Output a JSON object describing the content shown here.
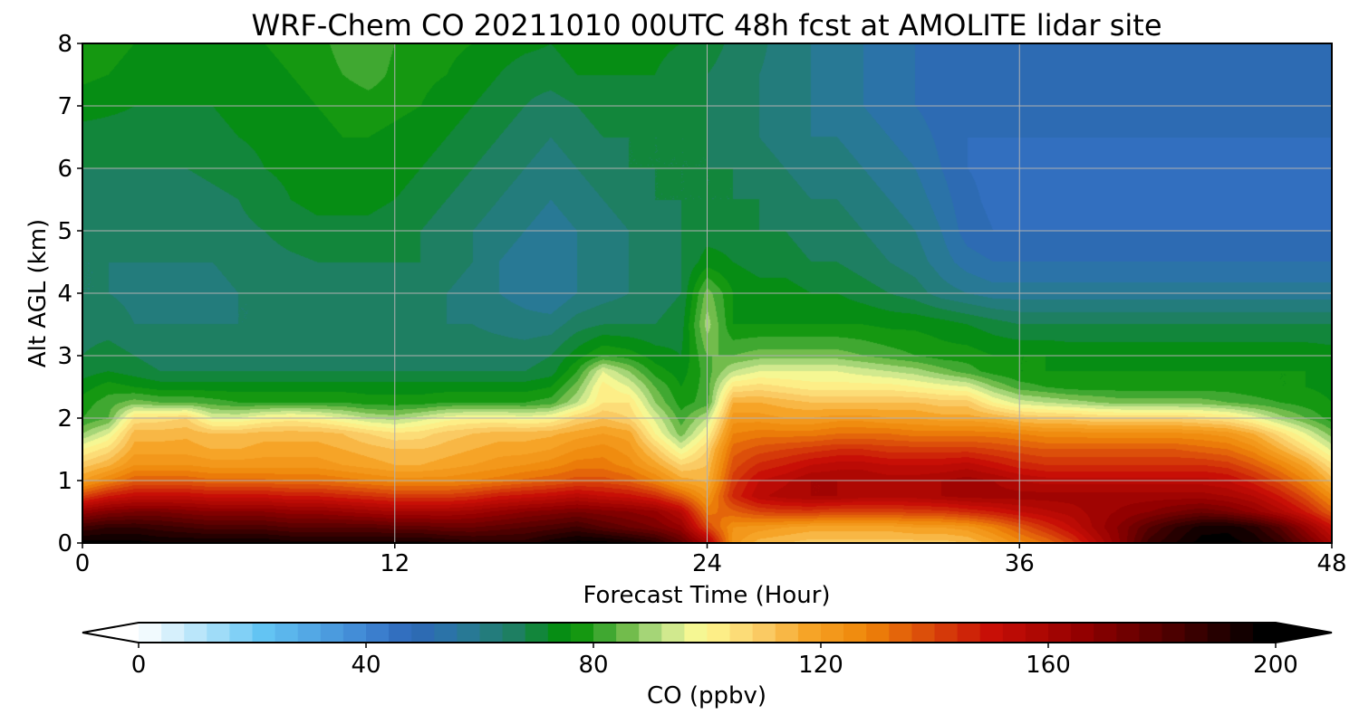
{
  "chart_data": {
    "type": "heatmap",
    "title": "WRF-Chem CO  20211010 00UTC 48h fcst at AMOLITE lidar site",
    "xlabel": "Forecast Time (Hour)",
    "ylabel": "Alt AGL (km)",
    "xlim": [
      0,
      48
    ],
    "ylim": [
      0,
      8
    ],
    "xticks": [
      0,
      12,
      24,
      36,
      48
    ],
    "yticks": [
      0,
      1,
      2,
      3,
      4,
      5,
      6,
      7,
      8
    ],
    "grid": true,
    "colorbar": {
      "label": "CO  (ppbv)",
      "range": [
        0,
        200
      ],
      "ticks": [
        0,
        40,
        80,
        120,
        160,
        200
      ],
      "extend": "both",
      "colors": [
        {
          "v": 0,
          "c": "#ffffff"
        },
        {
          "v": 14,
          "c": "#9fdcf8"
        },
        {
          "v": 22,
          "c": "#63c4f3"
        },
        {
          "v": 40,
          "c": "#3f86d4"
        },
        {
          "v": 48,
          "c": "#2e67b8"
        },
        {
          "v": 56,
          "c": "#2a77a2"
        },
        {
          "v": 66,
          "c": "#1e7f62"
        },
        {
          "v": 76,
          "c": "#009000"
        },
        {
          "v": 81,
          "c": "#34a32a"
        },
        {
          "v": 86,
          "c": "#72bc4c"
        },
        {
          "v": 92,
          "c": "#bfe28c"
        },
        {
          "v": 99,
          "c": "#fefb94"
        },
        {
          "v": 109,
          "c": "#fbcf6a"
        },
        {
          "v": 118,
          "c": "#f6a427"
        },
        {
          "v": 128,
          "c": "#ef8609"
        },
        {
          "v": 140,
          "c": "#d8440a"
        },
        {
          "v": 150,
          "c": "#c80f06"
        },
        {
          "v": 166,
          "c": "#930000"
        },
        {
          "v": 182,
          "c": "#4c0000"
        },
        {
          "v": 198,
          "c": "#000000"
        }
      ]
    },
    "x": [
      0,
      1,
      2,
      3,
      4,
      5,
      6,
      7,
      8,
      9,
      10,
      11,
      12,
      13,
      14,
      15,
      16,
      17,
      18,
      19,
      20,
      21,
      22,
      23,
      24,
      25,
      26,
      27,
      28,
      29,
      30,
      31,
      32,
      33,
      34,
      35,
      36,
      37,
      38,
      39,
      40,
      41,
      42,
      43,
      44,
      45,
      46,
      47,
      48
    ],
    "y": [
      0,
      0.25,
      0.5,
      0.75,
      1,
      1.25,
      1.5,
      1.75,
      2,
      2.25,
      2.5,
      2.75,
      3,
      3.5,
      4,
      4.5,
      5,
      5.5,
      6,
      6.5,
      7,
      7.5,
      8
    ],
    "z": [
      [
        198,
        198,
        198,
        196,
        196,
        196,
        196,
        196,
        194,
        194,
        194,
        194,
        194,
        194,
        192,
        190,
        190,
        190,
        195,
        198,
        198,
        195,
        190,
        178,
        160,
        122,
        114,
        112,
        110,
        110,
        110,
        110,
        110,
        110,
        112,
        118,
        126,
        132,
        142,
        156,
        170,
        186,
        192,
        198,
        198,
        195,
        188,
        175,
        160
      ],
      [
        185,
        188,
        188,
        186,
        184,
        182,
        182,
        182,
        180,
        180,
        180,
        180,
        178,
        178,
        176,
        176,
        178,
        180,
        182,
        185,
        180,
        176,
        172,
        165,
        140,
        124,
        122,
        120,
        118,
        118,
        118,
        118,
        120,
        120,
        122,
        128,
        136,
        144,
        152,
        162,
        170,
        180,
        188,
        194,
        195,
        190,
        180,
        165,
        150
      ],
      [
        165,
        170,
        172,
        172,
        170,
        168,
        168,
        168,
        166,
        166,
        164,
        162,
        160,
        160,
        160,
        162,
        165,
        168,
        170,
        172,
        170,
        168,
        165,
        155,
        130,
        135,
        140,
        142,
        142,
        140,
        140,
        140,
        142,
        142,
        145,
        148,
        152,
        155,
        158,
        162,
        165,
        168,
        172,
        175,
        172,
        166,
        158,
        148,
        135
      ],
      [
        140,
        148,
        152,
        152,
        152,
        150,
        150,
        150,
        148,
        148,
        146,
        144,
        142,
        142,
        142,
        144,
        148,
        150,
        152,
        155,
        152,
        150,
        145,
        135,
        122,
        145,
        155,
        158,
        160,
        160,
        158,
        158,
        158,
        160,
        162,
        162,
        162,
        162,
        162,
        162,
        162,
        162,
        162,
        162,
        160,
        156,
        148,
        138,
        125
      ],
      [
        120,
        128,
        135,
        135,
        135,
        133,
        133,
        133,
        132,
        132,
        130,
        128,
        126,
        126,
        126,
        128,
        130,
        133,
        135,
        138,
        138,
        135,
        128,
        118,
        115,
        142,
        152,
        155,
        160,
        160,
        160,
        158,
        158,
        160,
        162,
        160,
        156,
        154,
        154,
        154,
        154,
        154,
        154,
        154,
        152,
        146,
        138,
        128,
        114
      ],
      [
        110,
        115,
        124,
        124,
        124,
        122,
        122,
        122,
        122,
        122,
        120,
        118,
        116,
        116,
        118,
        120,
        122,
        124,
        126,
        130,
        130,
        126,
        118,
        108,
        112,
        138,
        145,
        148,
        152,
        154,
        154,
        152,
        152,
        152,
        154,
        150,
        146,
        144,
        144,
        144,
        144,
        144,
        144,
        144,
        142,
        136,
        128,
        118,
        105
      ],
      [
        100,
        106,
        118,
        118,
        118,
        116,
        116,
        118,
        118,
        118,
        116,
        114,
        112,
        112,
        114,
        116,
        118,
        118,
        120,
        124,
        126,
        122,
        110,
        96,
        108,
        134,
        138,
        140,
        142,
        144,
        144,
        142,
        142,
        142,
        142,
        140,
        138,
        136,
        136,
        136,
        136,
        136,
        136,
        134,
        132,
        126,
        116,
        106,
        95
      ],
      [
        88,
        96,
        114,
        114,
        115,
        112,
        112,
        114,
        114,
        114,
        112,
        108,
        105,
        106,
        110,
        112,
        114,
        114,
        115,
        118,
        120,
        118,
        100,
        86,
        100,
        128,
        130,
        130,
        130,
        132,
        132,
        132,
        130,
        130,
        130,
        130,
        128,
        126,
        126,
        125,
        125,
        125,
        125,
        124,
        122,
        116,
        106,
        96,
        86
      ],
      [
        80,
        84,
        105,
        106,
        108,
        96,
        96,
        100,
        102,
        100,
        96,
        92,
        90,
        94,
        98,
        100,
        100,
        98,
        100,
        108,
        112,
        108,
        95,
        82,
        92,
        122,
        122,
        120,
        120,
        122,
        122,
        120,
        120,
        118,
        118,
        116,
        112,
        110,
        110,
        108,
        108,
        108,
        108,
        106,
        104,
        98,
        90,
        84,
        78
      ],
      [
        78,
        82,
        86,
        84,
        84,
        82,
        80,
        80,
        80,
        80,
        80,
        78,
        78,
        78,
        80,
        80,
        80,
        80,
        82,
        92,
        104,
        104,
        88,
        78,
        82,
        116,
        116,
        114,
        112,
        112,
        112,
        112,
        112,
        110,
        110,
        100,
        94,
        92,
        90,
        88,
        86,
        86,
        86,
        86,
        84,
        82,
        80,
        78,
        76
      ],
      [
        74,
        78,
        76,
        74,
        74,
        74,
        74,
        74,
        74,
        74,
        74,
        74,
        74,
        74,
        74,
        74,
        74,
        74,
        76,
        86,
        102,
        96,
        84,
        76,
        82,
        104,
        106,
        104,
        102,
        102,
        102,
        102,
        100,
        98,
        96,
        88,
        82,
        80,
        78,
        78,
        78,
        78,
        78,
        78,
        78,
        77,
        76,
        76,
        75
      ],
      [
        70,
        72,
        70,
        68,
        68,
        68,
        68,
        68,
        68,
        68,
        68,
        68,
        68,
        68,
        68,
        68,
        68,
        68,
        70,
        80,
        96,
        88,
        78,
        74,
        82,
        92,
        96,
        96,
        96,
        96,
        94,
        92,
        90,
        86,
        82,
        78,
        76,
        76,
        76,
        76,
        76,
        76,
        76,
        76,
        76,
        76,
        76,
        76,
        75
      ],
      [
        68,
        70,
        68,
        66,
        66,
        66,
        66,
        66,
        66,
        66,
        66,
        66,
        66,
        66,
        66,
        66,
        66,
        66,
        68,
        74,
        80,
        78,
        74,
        72,
        84,
        84,
        86,
        86,
        86,
        86,
        84,
        82,
        80,
        78,
        78,
        76,
        76,
        76,
        75,
        75,
        75,
        75,
        75,
        75,
        75,
        75,
        75,
        75,
        74
      ],
      [
        66,
        66,
        64,
        64,
        64,
        64,
        64,
        64,
        64,
        65,
        65,
        65,
        65,
        65,
        64,
        64,
        63,
        62,
        62,
        66,
        68,
        68,
        68,
        70,
        90,
        76,
        76,
        76,
        76,
        76,
        76,
        75,
        75,
        74,
        72,
        70,
        68,
        68,
        68,
        68,
        68,
        68,
        68,
        68,
        68,
        68,
        68,
        68,
        68
      ],
      [
        64,
        64,
        63,
        63,
        63,
        63,
        64,
        64,
        65,
        66,
        66,
        66,
        66,
        66,
        64,
        62,
        60,
        58,
        56,
        60,
        62,
        64,
        66,
        68,
        86,
        76,
        74,
        74,
        72,
        72,
        70,
        68,
        66,
        62,
        60,
        58,
        58,
        58,
        58,
        58,
        58,
        58,
        58,
        58,
        58,
        58,
        58,
        58,
        58
      ],
      [
        64,
        64,
        64,
        64,
        64,
        64,
        65,
        66,
        67,
        68,
        68,
        68,
        68,
        68,
        66,
        64,
        60,
        58,
        56,
        60,
        62,
        64,
        66,
        68,
        74,
        72,
        70,
        70,
        68,
        68,
        66,
        64,
        62,
        58,
        54,
        52,
        52,
        52,
        52,
        52,
        52,
        52,
        52,
        52,
        52,
        52,
        52,
        52,
        52
      ],
      [
        65,
        65,
        65,
        65,
        65,
        66,
        67,
        68,
        70,
        71,
        71,
        71,
        70,
        68,
        66,
        64,
        62,
        60,
        58,
        60,
        62,
        64,
        66,
        68,
        70,
        70,
        68,
        68,
        66,
        66,
        64,
        62,
        60,
        56,
        50,
        48,
        48,
        48,
        48,
        48,
        48,
        48,
        48,
        48,
        48,
        48,
        48,
        48,
        48
      ],
      [
        66,
        66,
        66,
        66,
        66,
        67,
        68,
        70,
        72,
        73,
        73,
        73,
        72,
        70,
        68,
        66,
        64,
        62,
        60,
        62,
        64,
        66,
        68,
        68,
        68,
        68,
        68,
        66,
        64,
        64,
        62,
        60,
        58,
        54,
        49,
        47,
        47,
        47,
        47,
        47,
        47,
        47,
        47,
        47,
        47,
        47,
        47,
        47,
        47
      ],
      [
        68,
        68,
        68,
        68,
        68,
        69,
        70,
        72,
        73,
        74,
        75,
        75,
        74,
        72,
        70,
        68,
        66,
        64,
        62,
        64,
        66,
        68,
        68,
        68,
        68,
        68,
        66,
        64,
        62,
        62,
        60,
        58,
        56,
        52,
        48,
        47,
        47,
        47,
        47,
        47,
        47,
        47,
        47,
        47,
        47,
        47,
        47,
        47,
        47
      ],
      [
        70,
        70,
        70,
        70,
        70,
        71,
        72,
        73,
        74,
        75,
        76,
        76,
        75,
        74,
        72,
        70,
        68,
        66,
        64,
        66,
        68,
        68,
        68,
        68,
        68,
        66,
        64,
        62,
        60,
        60,
        58,
        56,
        54,
        51,
        48,
        48,
        48,
        48,
        48,
        48,
        48,
        48,
        48,
        48,
        48,
        48,
        48,
        48,
        48
      ],
      [
        74,
        73,
        72,
        72,
        72,
        72,
        73,
        74,
        75,
        76,
        77,
        78,
        77,
        76,
        74,
        72,
        70,
        68,
        66,
        68,
        70,
        70,
        70,
        70,
        68,
        66,
        64,
        62,
        60,
        58,
        56,
        54,
        52,
        50,
        49,
        49,
        49,
        49,
        49,
        49,
        49,
        49,
        49,
        49,
        49,
        49,
        49,
        49,
        49
      ],
      [
        77,
        76,
        75,
        74,
        74,
        74,
        74,
        75,
        76,
        77,
        80,
        82,
        79,
        77,
        76,
        74,
        72,
        70,
        70,
        72,
        72,
        72,
        72,
        70,
        68,
        66,
        64,
        62,
        60,
        58,
        56,
        54,
        52,
        50,
        50,
        50,
        50,
        50,
        50,
        50,
        50,
        50,
        50,
        50,
        50,
        50,
        50,
        50,
        50
      ],
      [
        78,
        77,
        76,
        75,
        75,
        75,
        75,
        76,
        77,
        78,
        82,
        83,
        80,
        78,
        77,
        76,
        74,
        73,
        72,
        74,
        74,
        74,
        73,
        72,
        70,
        67,
        65,
        62,
        60,
        58,
        56,
        54,
        52,
        51,
        51,
        51,
        51,
        51,
        51,
        51,
        51,
        51,
        51,
        51,
        51,
        51,
        51,
        51,
        51
      ]
    ]
  }
}
